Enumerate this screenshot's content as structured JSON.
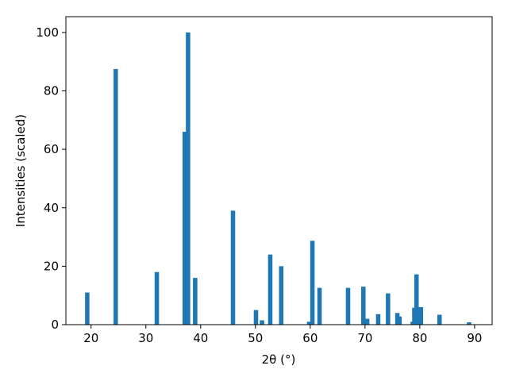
{
  "chart_data": {
    "type": "bar",
    "xlabel": "2θ (°)",
    "ylabel": "Intensities (scaled)",
    "x": [
      19.3,
      24.5,
      32.0,
      37.1,
      37.7,
      39.0,
      45.9,
      50.1,
      51.2,
      52.7,
      54.7,
      59.8,
      60.4,
      61.7,
      66.9,
      69.7,
      70.4,
      72.4,
      74.2,
      75.9,
      76.3,
      78.7,
      79.0,
      79.4,
      80.2,
      83.6,
      89.0
    ],
    "values": [
      11,
      87.5,
      18,
      66,
      100,
      16,
      39,
      5,
      1.5,
      24,
      20,
      1,
      28.7,
      12.6,
      12.6,
      13,
      2,
      3.6,
      10.7,
      4,
      2.8,
      1,
      5.8,
      17.2,
      6,
      3.4,
      0.8
    ],
    "color": "#1f77b4",
    "xlim": [
      15.4,
      93.2
    ],
    "xticks": [
      20,
      30,
      40,
      50,
      60,
      70,
      80,
      90
    ],
    "ylim": [
      0,
      105.4
    ],
    "yticks": [
      0,
      20,
      40,
      60,
      80,
      100
    ]
  }
}
